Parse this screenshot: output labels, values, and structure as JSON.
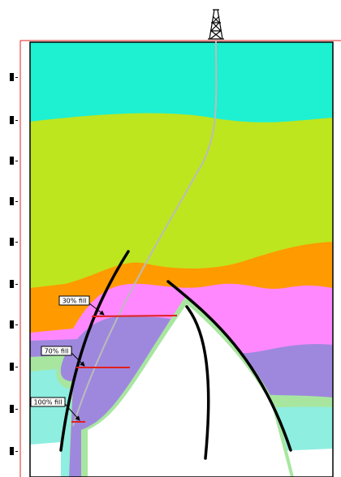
{
  "annotations": [
    {
      "label": "30% fill"
    },
    {
      "label": "70% fill"
    },
    {
      "label": "100% fill"
    }
  ]
}
